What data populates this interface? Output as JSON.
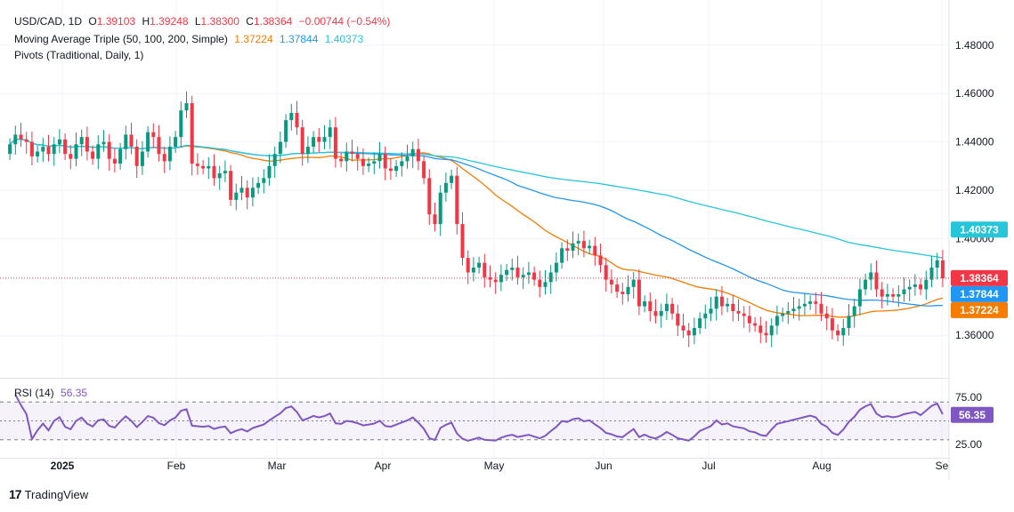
{
  "header": {
    "symbol": "USD/CAD, 1D",
    "open_label": "O",
    "open": "1.39103",
    "high_label": "H",
    "high": "1.39248",
    "low_label": "L",
    "low": "1.38300",
    "close_label": "C",
    "close": "1.38364",
    "change": "−0.00744 (−0.54%)",
    "ma_label": "Moving Average Triple (50, 100, 200, Simple)",
    "ma50": "1.37224",
    "ma100": "1.37844",
    "ma200": "1.40373",
    "pivots_label": "Pivots (Traditional, Daily, 1)"
  },
  "rsi_header": {
    "label": "RSI (14)",
    "value": "56.35"
  },
  "brand": {
    "name": "TradingView"
  },
  "colors": {
    "up": "#089981",
    "down": "#f23645",
    "ma50": "#f57c00",
    "ma100": "#2196f3",
    "ma200": "#26c6da",
    "rsi": "#7e57c2"
  },
  "chart_data": {
    "type": "candlestick",
    "y_ticks": [
      "1.48000",
      "1.46000",
      "1.44000",
      "1.42000",
      "1.40000",
      "1.36000"
    ],
    "y_tick_values": [
      1.48,
      1.46,
      1.44,
      1.42,
      1.4,
      1.36
    ],
    "ylim": [
      1.345,
      1.495
    ],
    "x_ticks": [
      "2025",
      "Feb",
      "Mar",
      "Apr",
      "May",
      "Jun",
      "Jul",
      "Aug",
      "Se"
    ],
    "price_labels": [
      {
        "name": "ma200",
        "value": 1.40373,
        "text": "1.40373"
      },
      {
        "name": "last",
        "value": 1.38364,
        "text": "1.38364"
      },
      {
        "name": "ma100",
        "value": 1.37844,
        "text": "1.37844"
      },
      {
        "name": "ma50",
        "value": 1.37224,
        "text": "1.37224"
      }
    ],
    "last_close": 1.38364,
    "closes": [
      1.439,
      1.443,
      1.441,
      1.44,
      1.434,
      1.436,
      1.438,
      1.435,
      1.439,
      1.441,
      1.435,
      1.433,
      1.439,
      1.442,
      1.436,
      1.433,
      1.439,
      1.44,
      1.433,
      1.431,
      1.437,
      1.443,
      1.438,
      1.43,
      1.436,
      1.444,
      1.442,
      1.435,
      1.432,
      1.438,
      1.442,
      1.453,
      1.456,
      1.431,
      1.43,
      1.429,
      1.43,
      1.425,
      1.427,
      1.428,
      1.416,
      1.419,
      1.421,
      1.417,
      1.421,
      1.423,
      1.425,
      1.43,
      1.435,
      1.44,
      1.449,
      1.452,
      1.446,
      1.435,
      1.438,
      1.442,
      1.44,
      1.442,
      1.446,
      1.433,
      1.432,
      1.436,
      1.435,
      1.433,
      1.43,
      1.431,
      1.432,
      1.435,
      1.429,
      1.428,
      1.43,
      1.432,
      1.434,
      1.437,
      1.432,
      1.425,
      1.41,
      1.406,
      1.419,
      1.423,
      1.426,
      1.406,
      1.392,
      1.386,
      1.388,
      1.39,
      1.384,
      1.383,
      1.382,
      1.385,
      1.387,
      1.388,
      1.384,
      1.385,
      1.386,
      1.383,
      1.38,
      1.382,
      1.386,
      1.39,
      1.396,
      1.395,
      1.398,
      1.399,
      1.396,
      1.397,
      1.393,
      1.389,
      1.383,
      1.381,
      1.378,
      1.377,
      1.38,
      1.383,
      1.372,
      1.374,
      1.37,
      1.368,
      1.37,
      1.373,
      1.369,
      1.364,
      1.362,
      1.36,
      1.363,
      1.367,
      1.369,
      1.371,
      1.376,
      1.372,
      1.373,
      1.37,
      1.369,
      1.368,
      1.365,
      1.364,
      1.361,
      1.36,
      1.364,
      1.368,
      1.369,
      1.37,
      1.371,
      1.372,
      1.373,
      1.374,
      1.373,
      1.369,
      1.367,
      1.362,
      1.36,
      1.363,
      1.368,
      1.372,
      1.379,
      1.383,
      1.386,
      1.379,
      1.376,
      1.377,
      1.376,
      1.377,
      1.379,
      1.38,
      1.381,
      1.379,
      1.383,
      1.388,
      1.391,
      1.3836
    ]
  }
}
